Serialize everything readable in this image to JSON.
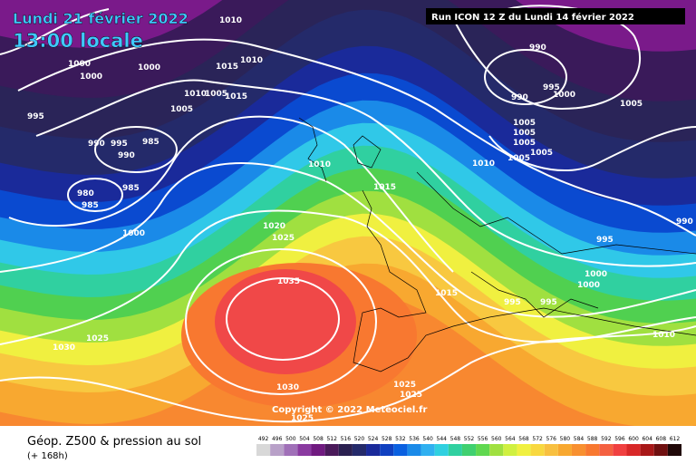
{
  "header": {
    "date": "Lundi 21 février 2022",
    "time": "13:00 locale",
    "run": "Run ICON 12 Z du Lundi 14 février 2022"
  },
  "copyright": "Copyright © 2022 Meteociel.fr",
  "footer": {
    "title": "Géop. Z500 & pression au sol",
    "lead": "(+ 168h)"
  },
  "legend": {
    "values": [
      492,
      496,
      500,
      504,
      508,
      512,
      516,
      520,
      524,
      528,
      532,
      536,
      540,
      544,
      548,
      552,
      556,
      560,
      564,
      568,
      572,
      576,
      580,
      584,
      588,
      592,
      596,
      600,
      604,
      608,
      612
    ],
    "colors": [
      "#d8d8d8",
      "#b8a0c8",
      "#a070b8",
      "#8a3aa0",
      "#701a80",
      "#4a1a5a",
      "#2a2050",
      "#242a6a",
      "#1a2a9a",
      "#1040c0",
      "#0a60e0",
      "#1a8ae8",
      "#30b0f0",
      "#30d0e0",
      "#30d0a0",
      "#40d070",
      "#60d850",
      "#a0e040",
      "#d0f040",
      "#f0f040",
      "#f8d840",
      "#f8c040",
      "#f8a830",
      "#f89030",
      "#f87830",
      "#f46040",
      "#f04040",
      "#d82828",
      "#a81818",
      "#701010",
      "#200808"
    ]
  },
  "isobars": [
    "1010",
    "1000",
    "1000",
    "1000",
    "1015",
    "1010",
    "1015",
    "1010",
    "1005",
    "1005",
    "995",
    "990",
    "995",
    "985",
    "990",
    "985",
    "980",
    "985",
    "1000",
    "1010",
    "1015",
    "1020",
    "1025",
    "1035",
    "1030",
    "1025",
    "1030",
    "1025",
    "1025",
    "1025",
    "1015",
    "990",
    "990",
    "995",
    "1000",
    "1005",
    "1005",
    "1005",
    "1005",
    "1005",
    "1005",
    "1010",
    "990",
    "995",
    "1000",
    "1000",
    "995",
    "995",
    "1010"
  ]
}
